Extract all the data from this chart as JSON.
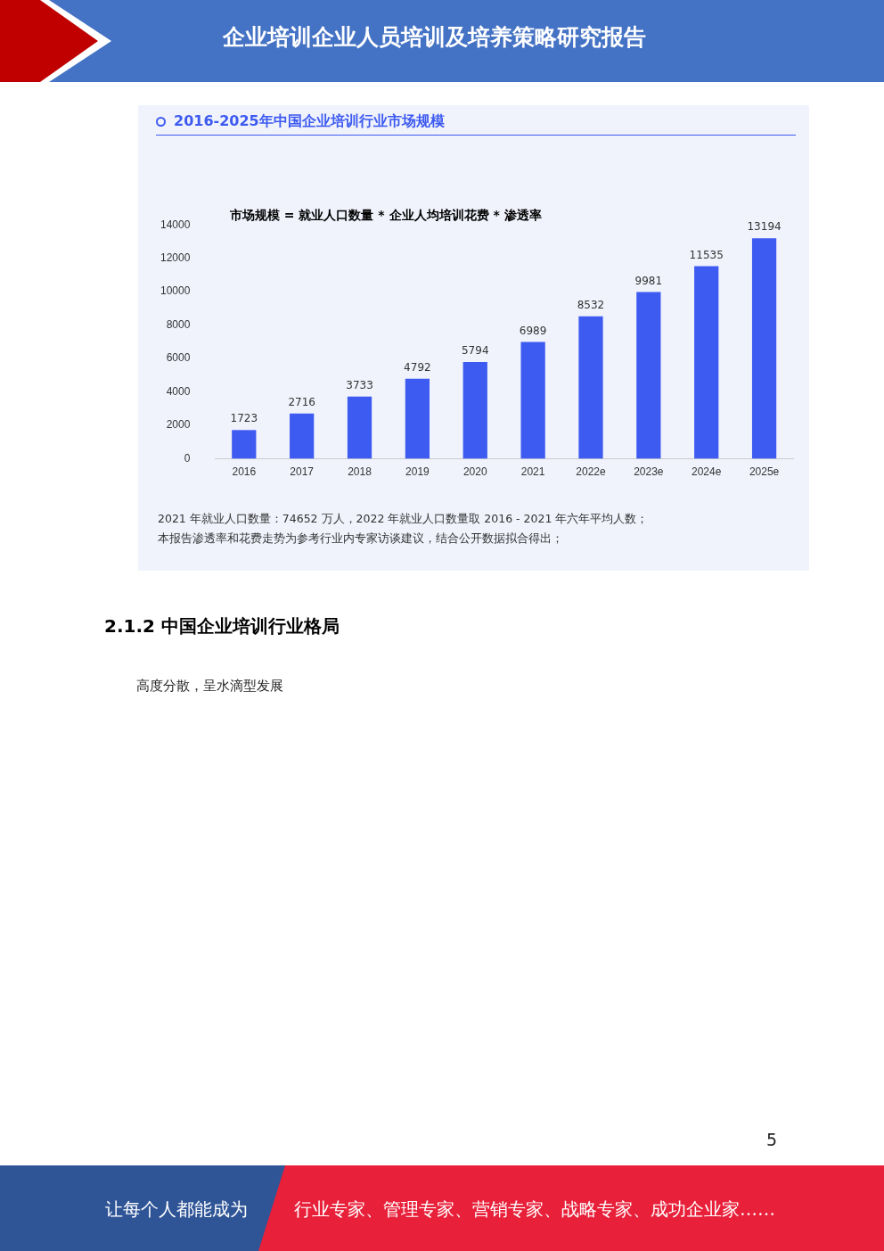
{
  "chart_data": {
    "type": "bar",
    "title": "2016-2025年中国企业培训行业市场规模",
    "categories": [
      "2016",
      "2017",
      "2018",
      "2019",
      "2020",
      "2021",
      "2022e",
      "2023e",
      "2024e",
      "2025e"
    ],
    "values": [
      1723,
      2716,
      3733,
      4792,
      5794,
      6989,
      8532,
      9981,
      11535,
      13194
    ],
    "color": "#3d5af1",
    "ylim": [
      0,
      14000
    ],
    "yticks": [
      0,
      2000,
      4000,
      6000,
      8000,
      10000,
      12000,
      14000
    ],
    "grid": false,
    "legend": false,
    "data_labels": true,
    "annotations": [
      "市场规模 = 就业人口数量 * 企业人均培训花费 * 渗透率",
      "2021 年就业人口数量：74652 万人，2022 年就业人口数量取 2016 - 2021 年六年平均人数；",
      "本报告渗透率和花费走势为参考行业内专家访谈建议，结合公开数据拟合得出；",
      "企业培训企业人员培训及培养策略研究报告",
      "2.1.2 中国企业培训行业格局",
      "高度分散，呈水滴型发展",
      "5",
      "让每个人都能成为",
      "行业专家、管理专家、营销专家、战略专家、成功企业家……"
    ]
  }
}
